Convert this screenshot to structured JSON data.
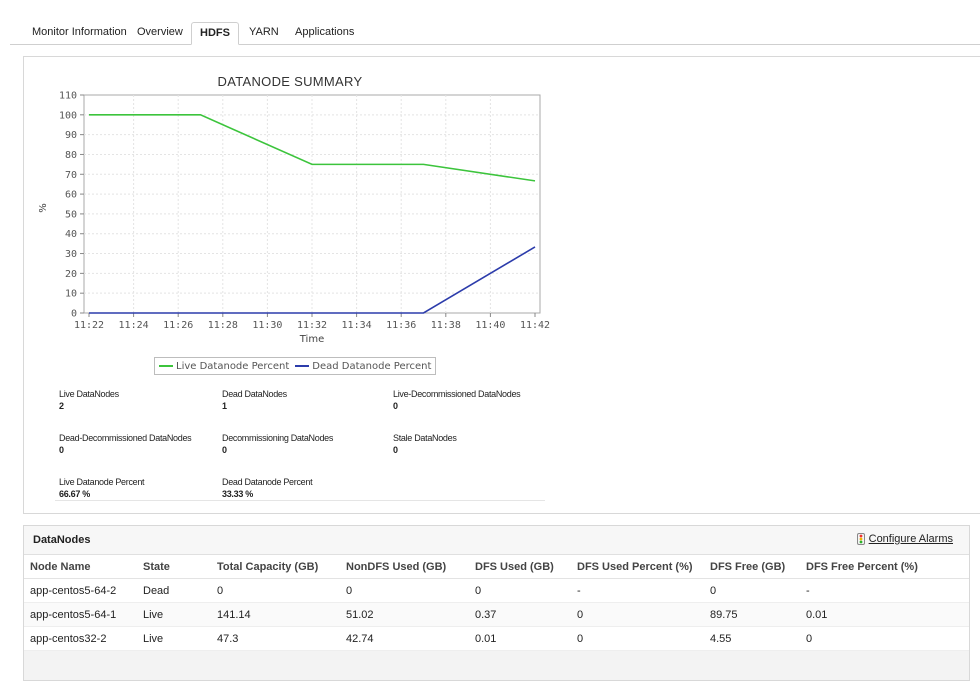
{
  "tabs": [
    {
      "label": "Monitor Information",
      "active": false
    },
    {
      "label": "Overview",
      "active": false
    },
    {
      "label": "HDFS",
      "active": true
    },
    {
      "label": "YARN",
      "active": false
    },
    {
      "label": "Applications",
      "active": false
    }
  ],
  "chart_data": {
    "type": "line",
    "title": "DATANODE SUMMARY",
    "xlabel": "Time",
    "ylabel": "%",
    "x_ticks": [
      "11:22",
      "11:24",
      "11:26",
      "11:28",
      "11:30",
      "11:32",
      "11:34",
      "11:36",
      "11:38",
      "11:40",
      "11:42"
    ],
    "xlim": [
      "11:22",
      "11:42"
    ],
    "ylim": [
      0,
      110
    ],
    "y_ticks": [
      0,
      10,
      20,
      30,
      40,
      50,
      60,
      70,
      80,
      90,
      100,
      110
    ],
    "grid": true,
    "legend_position": "bottom",
    "series": [
      {
        "name": "Live Datanode Percent",
        "color": "#3cc43c",
        "points": [
          [
            "11:22",
            100
          ],
          [
            "11:27",
            100
          ],
          [
            "11:32",
            75
          ],
          [
            "11:37",
            75
          ],
          [
            "11:42",
            66.67
          ]
        ]
      },
      {
        "name": "Dead Datanode Percent",
        "color": "#2c3cab",
        "points": [
          [
            "11:22",
            0
          ],
          [
            "11:27",
            0
          ],
          [
            "11:32",
            0
          ],
          [
            "11:37",
            0
          ],
          [
            "11:42",
            33.33
          ]
        ]
      }
    ]
  },
  "stats": {
    "live": {
      "label": "Live DataNodes",
      "value": "2"
    },
    "dead": {
      "label": "Dead DataNodes",
      "value": "1"
    },
    "live_decom": {
      "label": "Live-Decommissioned DataNodes",
      "value": "0"
    },
    "dead_decom": {
      "label": "Dead-Decommissioned DataNodes",
      "value": "0"
    },
    "decommissioning": {
      "label": "Decommissioning DataNodes",
      "value": "0"
    },
    "stale": {
      "label": "Stale DataNodes",
      "value": "0"
    },
    "live_pct": {
      "label": "Live Datanode Percent",
      "value": "66.67 %"
    },
    "dead_pct": {
      "label": "Dead Datanode Percent",
      "value": "33.33 %"
    }
  },
  "datanodes": {
    "title": "DataNodes",
    "configure_alarms": "Configure Alarms",
    "columns": [
      "Node Name",
      "State",
      "Total Capacity  (GB)",
      "NonDFS Used  (GB)",
      "DFS Used  (GB)",
      "DFS Used Percent  (%)",
      "DFS Free  (GB)",
      "DFS Free Percent  (%)"
    ],
    "rows": [
      [
        "app-centos5-64-2",
        "Dead",
        "0",
        "0",
        "0",
        "-",
        "0",
        "-"
      ],
      [
        "app-centos5-64-1",
        "Live",
        "141.14",
        "51.02",
        "0.37",
        "0",
        "89.75",
        "0.01"
      ],
      [
        "app-centos32-2",
        "Live",
        "47.3",
        "42.74",
        "0.01",
        "0",
        "4.55",
        "0"
      ]
    ]
  }
}
